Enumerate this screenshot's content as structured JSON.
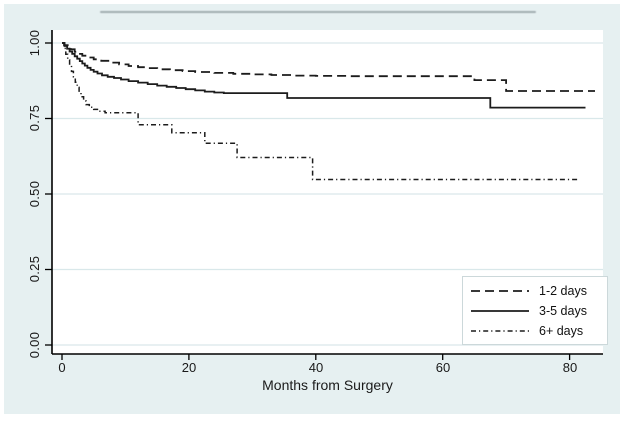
{
  "figure": {
    "background_color": "#e6f0f1",
    "plot_background_color": "#ffffff",
    "grid_color": "#d9e8ea",
    "axis_color": "#000000",
    "curve_color": "#1c1c1c",
    "legend_border_color": "#ccd8da"
  },
  "chart_data": {
    "type": "line",
    "subtype": "kaplan_meier_step",
    "title": "",
    "xlabel": "Months from Surgery",
    "ylabel": "",
    "xlim": [
      0,
      85
    ],
    "ylim": [
      0.0,
      1.0
    ],
    "grid": "horizontal",
    "legend_position": "bottom-right",
    "x_ticks": [
      0,
      20,
      40,
      60,
      80
    ],
    "y_ticks": [
      {
        "label": "1.00",
        "value": 1.0
      },
      {
        "label": "0.75",
        "value": 0.75
      },
      {
        "label": "0.50",
        "value": 0.5
      },
      {
        "label": "0.25",
        "value": 0.25
      },
      {
        "label": "0.00",
        "value": 0.0
      }
    ],
    "series": [
      {
        "name": "1-2 days",
        "line_style": "long-dash",
        "points": [
          [
            0,
            1.0
          ],
          [
            0.4,
            0.993
          ],
          [
            0.9,
            0.986
          ],
          [
            1.4,
            0.979
          ],
          [
            2.0,
            0.971
          ],
          [
            2.6,
            0.964
          ],
          [
            3.2,
            0.958
          ],
          [
            4.0,
            0.952
          ],
          [
            5.0,
            0.946
          ],
          [
            6.2,
            0.941
          ],
          [
            7.5,
            0.935
          ],
          [
            9.0,
            0.929
          ],
          [
            10.5,
            0.924
          ],
          [
            12.0,
            0.92
          ],
          [
            13.5,
            0.917
          ],
          [
            15.0,
            0.913
          ],
          [
            17.0,
            0.91
          ],
          [
            19.0,
            0.907
          ],
          [
            21.0,
            0.904
          ],
          [
            24.0,
            0.901
          ],
          [
            27.0,
            0.898
          ],
          [
            30.0,
            0.896
          ],
          [
            33.0,
            0.894
          ],
          [
            36.5,
            0.892
          ],
          [
            40.0,
            0.891
          ],
          [
            45.0,
            0.89
          ],
          [
            65.0,
            0.89
          ],
          [
            65.0,
            0.877
          ],
          [
            70.0,
            0.877
          ],
          [
            70.0,
            0.841
          ],
          [
            84.0,
            0.841
          ]
        ]
      },
      {
        "name": "3-5 days",
        "line_style": "solid",
        "points": [
          [
            0,
            1.0
          ],
          [
            0.4,
            0.99
          ],
          [
            0.8,
            0.981
          ],
          [
            1.2,
            0.972
          ],
          [
            1.6,
            0.964
          ],
          [
            2.0,
            0.956
          ],
          [
            2.4,
            0.948
          ],
          [
            2.8,
            0.94
          ],
          [
            3.2,
            0.932
          ],
          [
            3.6,
            0.925
          ],
          [
            4.0,
            0.918
          ],
          [
            4.5,
            0.911
          ],
          [
            5.0,
            0.905
          ],
          [
            5.6,
            0.899
          ],
          [
            6.3,
            0.893
          ],
          [
            7.2,
            0.888
          ],
          [
            8.2,
            0.884
          ],
          [
            9.3,
            0.879
          ],
          [
            10.5,
            0.874
          ],
          [
            12.0,
            0.869
          ],
          [
            13.5,
            0.864
          ],
          [
            15.0,
            0.859
          ],
          [
            16.5,
            0.855
          ],
          [
            18.0,
            0.851
          ],
          [
            19.5,
            0.847
          ],
          [
            21.0,
            0.843
          ],
          [
            22.5,
            0.839
          ],
          [
            24.0,
            0.836
          ],
          [
            25.5,
            0.834
          ],
          [
            35.5,
            0.834
          ],
          [
            35.5,
            0.818
          ],
          [
            67.5,
            0.818
          ],
          [
            67.5,
            0.786
          ],
          [
            82.5,
            0.786
          ]
        ]
      },
      {
        "name": "6+ days",
        "line_style": "dash-dot",
        "points": [
          [
            0,
            1.0
          ],
          [
            0.3,
            0.982
          ],
          [
            0.6,
            0.963
          ],
          [
            0.9,
            0.944
          ],
          [
            1.2,
            0.925
          ],
          [
            1.5,
            0.906
          ],
          [
            1.8,
            0.888
          ],
          [
            2.1,
            0.87
          ],
          [
            2.4,
            0.853
          ],
          [
            2.7,
            0.837
          ],
          [
            3.0,
            0.822
          ],
          [
            3.4,
            0.808
          ],
          [
            3.8,
            0.796
          ],
          [
            4.3,
            0.787
          ],
          [
            5.0,
            0.78
          ],
          [
            5.8,
            0.774
          ],
          [
            6.8,
            0.769
          ],
          [
            12.0,
            0.769
          ],
          [
            12.0,
            0.729
          ],
          [
            17.3,
            0.729
          ],
          [
            17.3,
            0.703
          ],
          [
            22.5,
            0.703
          ],
          [
            22.5,
            0.668
          ],
          [
            27.6,
            0.668
          ],
          [
            27.6,
            0.621
          ],
          [
            39.5,
            0.621
          ],
          [
            39.5,
            0.548
          ],
          [
            81.5,
            0.548
          ]
        ]
      }
    ]
  },
  "legend": {
    "items": [
      {
        "label": "1-2 days"
      },
      {
        "label": "3-5 days"
      },
      {
        "label": "6+ days"
      }
    ]
  }
}
